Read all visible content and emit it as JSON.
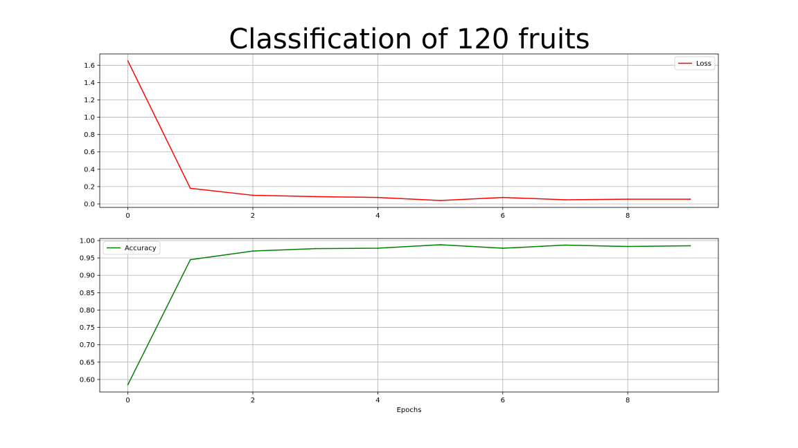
{
  "chart_data": {
    "title": "Classification of 120 fruits",
    "subplots": [
      {
        "type": "line",
        "series": [
          {
            "name": "Loss",
            "color": "#ff0000",
            "x": [
              0,
              1,
              2,
              3,
              4,
              5,
              6,
              7,
              8,
              9
            ],
            "values": [
              1.65,
              0.18,
              0.1,
              0.085,
              0.075,
              0.04,
              0.075,
              0.048,
              0.055,
              0.055
            ]
          }
        ],
        "xlim": [
          -0.45,
          9.45
        ],
        "ylim": [
          -0.04,
          1.73
        ],
        "xticks": [
          0,
          2,
          4,
          6,
          8
        ],
        "yticks": [
          0.0,
          0.2,
          0.4,
          0.6,
          0.8,
          1.0,
          1.2,
          1.4,
          1.6
        ],
        "ytick_labels": [
          "0.0",
          "0.2",
          "0.4",
          "0.6",
          "0.8",
          "1.0",
          "1.2",
          "1.4",
          "1.6"
        ],
        "xlabel": "",
        "ylabel": "",
        "grid": true,
        "legend_position": "top-right"
      },
      {
        "type": "line",
        "series": [
          {
            "name": "Accuracy",
            "color": "#008000",
            "x": [
              0,
              1,
              2,
              3,
              4,
              5,
              6,
              7,
              8,
              9
            ],
            "values": [
              0.585,
              0.945,
              0.97,
              0.977,
              0.978,
              0.988,
              0.978,
              0.987,
              0.983,
              0.985
            ]
          }
        ],
        "xlim": [
          -0.45,
          9.45
        ],
        "ylim": [
          0.564,
          1.006
        ],
        "xticks": [
          0,
          2,
          4,
          6,
          8
        ],
        "yticks": [
          0.6,
          0.65,
          0.7,
          0.75,
          0.8,
          0.85,
          0.9,
          0.95,
          1.0
        ],
        "ytick_labels": [
          "0.60",
          "0.65",
          "0.70",
          "0.75",
          "0.80",
          "0.85",
          "0.90",
          "0.95",
          "1.00"
        ],
        "xlabel": "Epochs",
        "ylabel": "",
        "grid": true,
        "legend_position": "top-left"
      }
    ]
  }
}
